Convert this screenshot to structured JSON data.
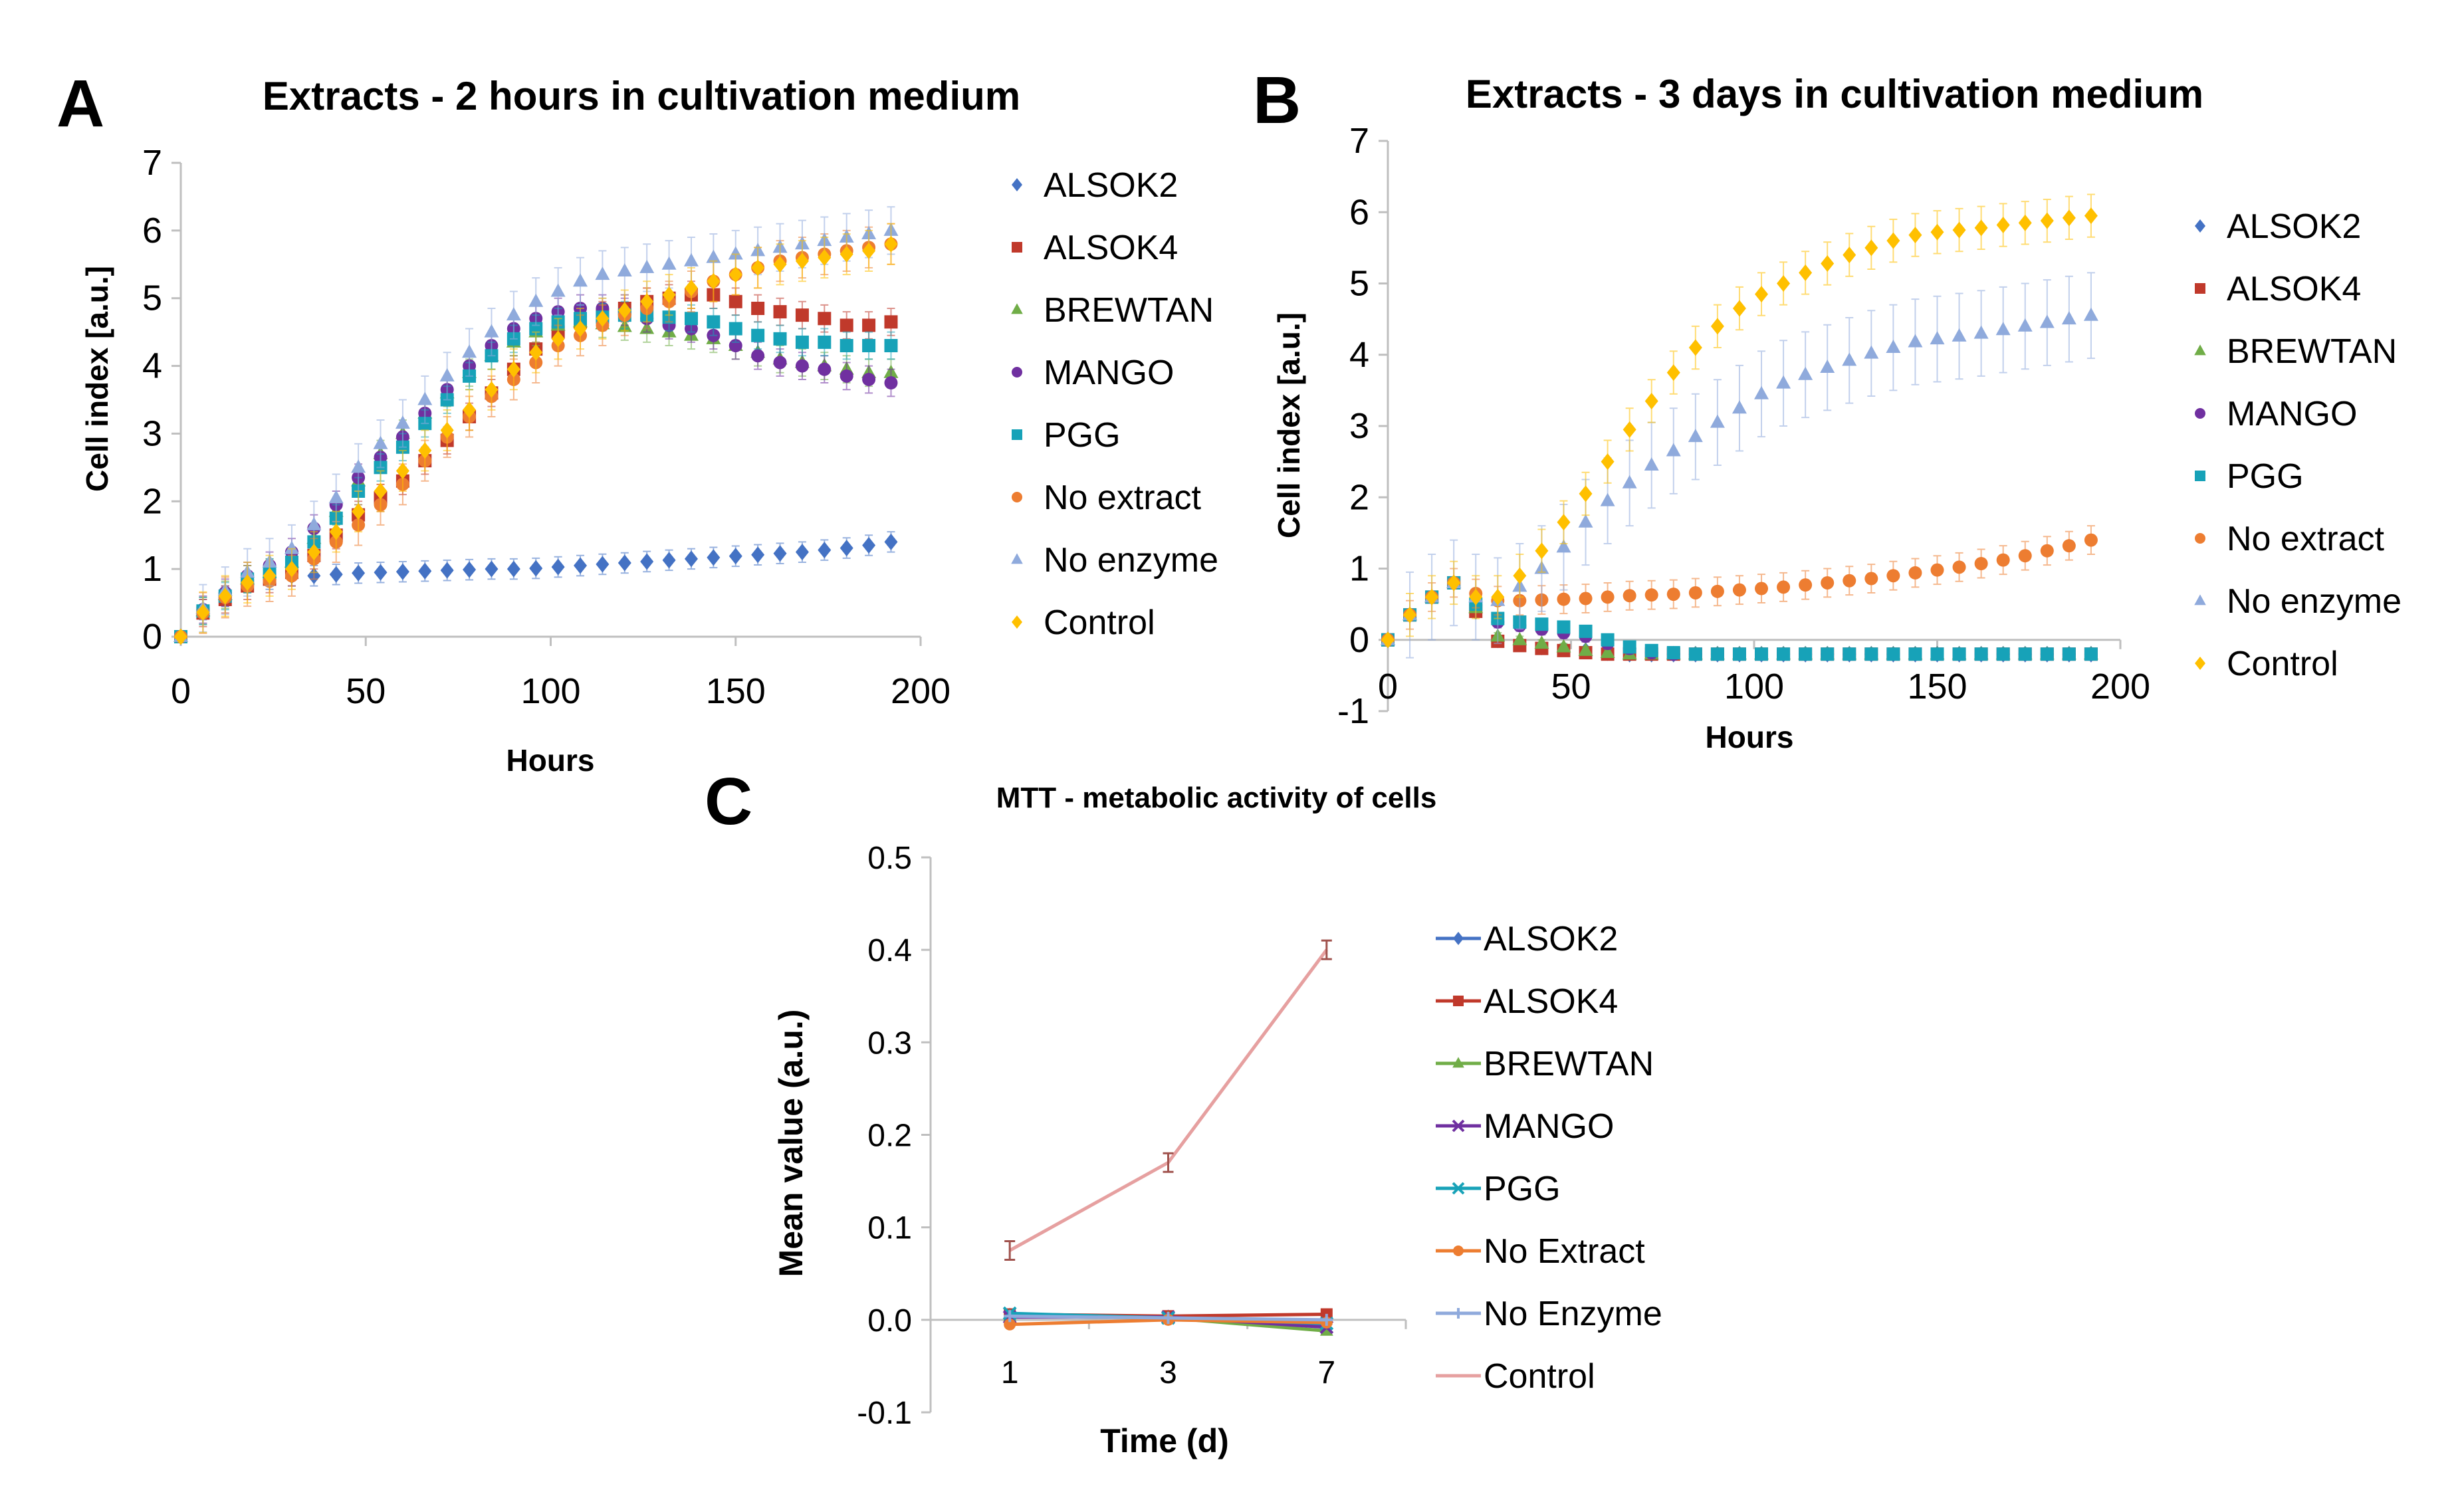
{
  "chart_data": [
    {
      "panel": "A",
      "type": "scatter",
      "title": "Extracts - 2 hours in cultivation medium",
      "xlabel": "Hours",
      "ylabel": "Cell index [a.u.]",
      "xlim": [
        0,
        200
      ],
      "ylim": [
        0,
        7
      ],
      "xticks": [
        "0",
        "50",
        "100",
        "150",
        "200"
      ],
      "yticks": [
        "0",
        "1",
        "2",
        "3",
        "4",
        "5",
        "6",
        "7"
      ],
      "legend_position": "right",
      "x": [
        0,
        6,
        12,
        18,
        24,
        30,
        36,
        42,
        48,
        54,
        60,
        66,
        72,
        78,
        84,
        90,
        96,
        102,
        108,
        114,
        120,
        126,
        132,
        138,
        144,
        150,
        156,
        162,
        168,
        174,
        180,
        186,
        192
      ],
      "series": [
        {
          "name": "ALSOK2",
          "color": "#4472c4",
          "marker": "diamond",
          "err": 0.15,
          "values": [
            0,
            0.4,
            0.6,
            0.8,
            0.85,
            0.9,
            0.9,
            0.92,
            0.94,
            0.95,
            0.96,
            0.97,
            0.98,
            0.99,
            1.0,
            1.0,
            1.01,
            1.03,
            1.05,
            1.07,
            1.09,
            1.11,
            1.13,
            1.15,
            1.17,
            1.19,
            1.21,
            1.23,
            1.25,
            1.28,
            1.31,
            1.35,
            1.4
          ]
        },
        {
          "name": "ALSOK4",
          "color": "#c0392b",
          "marker": "square",
          "err": 0.2,
          "values": [
            0,
            0.35,
            0.55,
            0.75,
            0.85,
            0.95,
            1.2,
            1.5,
            1.8,
            2.05,
            2.3,
            2.6,
            2.9,
            3.25,
            3.6,
            3.95,
            4.25,
            4.5,
            4.65,
            4.75,
            4.85,
            4.95,
            5.0,
            5.05,
            5.05,
            4.95,
            4.85,
            4.8,
            4.75,
            4.7,
            4.6,
            4.6,
            4.65
          ]
        },
        {
          "name": "BREWTAN",
          "color": "#70ad47",
          "marker": "triangle",
          "err": 0.2,
          "values": [
            0,
            0.38,
            0.62,
            0.85,
            0.95,
            1.1,
            1.45,
            1.85,
            2.3,
            2.7,
            3.0,
            3.3,
            3.6,
            3.9,
            4.15,
            4.35,
            4.5,
            4.6,
            4.65,
            4.62,
            4.58,
            4.55,
            4.5,
            4.45,
            4.4,
            4.3,
            4.2,
            4.1,
            4.05,
            4.0,
            3.95,
            3.9,
            3.9
          ]
        },
        {
          "name": "MANGO",
          "color": "#7030a0",
          "marker": "circle",
          "err": 0.2,
          "values": [
            0,
            0.4,
            0.65,
            0.9,
            1.05,
            1.25,
            1.6,
            1.95,
            2.35,
            2.65,
            2.95,
            3.3,
            3.65,
            4.0,
            4.3,
            4.55,
            4.7,
            4.8,
            4.85,
            4.85,
            4.8,
            4.7,
            4.6,
            4.55,
            4.45,
            4.3,
            4.15,
            4.05,
            4.0,
            3.95,
            3.85,
            3.8,
            3.75
          ]
        },
        {
          "name": "PGG",
          "color": "#17a2b8",
          "marker": "square",
          "err": 0.2,
          "values": [
            0,
            0.38,
            0.6,
            0.85,
            0.95,
            1.1,
            1.4,
            1.75,
            2.15,
            2.5,
            2.8,
            3.15,
            3.5,
            3.85,
            4.15,
            4.4,
            4.55,
            4.65,
            4.7,
            4.72,
            4.75,
            4.75,
            4.72,
            4.7,
            4.65,
            4.55,
            4.45,
            4.4,
            4.35,
            4.35,
            4.3,
            4.3,
            4.3
          ]
        },
        {
          "name": "No extract",
          "color": "#ed7d31",
          "marker": "circle",
          "err": 0.3,
          "values": [
            0,
            0.35,
            0.58,
            0.75,
            0.82,
            0.9,
            1.15,
            1.4,
            1.65,
            1.95,
            2.25,
            2.6,
            2.95,
            3.25,
            3.55,
            3.8,
            4.05,
            4.3,
            4.45,
            4.6,
            4.75,
            4.85,
            4.95,
            5.1,
            5.25,
            5.35,
            5.45,
            5.55,
            5.6,
            5.65,
            5.7,
            5.75,
            5.8
          ]
        },
        {
          "name": "No enzyme",
          "color": "#8faadc",
          "marker": "triangle",
          "err": 0.35,
          "values": [
            0,
            0.42,
            0.68,
            0.95,
            1.1,
            1.3,
            1.65,
            2.05,
            2.5,
            2.85,
            3.15,
            3.5,
            3.85,
            4.2,
            4.5,
            4.75,
            4.95,
            5.1,
            5.25,
            5.35,
            5.4,
            5.45,
            5.5,
            5.55,
            5.6,
            5.65,
            5.7,
            5.75,
            5.8,
            5.85,
            5.9,
            5.95,
            6.0
          ]
        },
        {
          "name": "Control",
          "color": "#ffc000",
          "marker": "diamond",
          "err": 0.3,
          "values": [
            0,
            0.36,
            0.6,
            0.8,
            0.9,
            1.0,
            1.25,
            1.55,
            1.85,
            2.15,
            2.45,
            2.75,
            3.05,
            3.35,
            3.65,
            3.95,
            4.2,
            4.4,
            4.55,
            4.7,
            4.82,
            4.95,
            5.05,
            5.15,
            5.25,
            5.35,
            5.45,
            5.5,
            5.55,
            5.6,
            5.65,
            5.7,
            5.8
          ]
        }
      ]
    },
    {
      "panel": "B",
      "type": "scatter",
      "title": "Extracts - 3 days in cultivation medium",
      "xlabel": "Hours",
      "ylabel": "Cell index [a.u.]",
      "xlim": [
        0,
        200
      ],
      "ylim": [
        -1,
        7
      ],
      "xticks": [
        "0",
        "50",
        "100",
        "150",
        "200"
      ],
      "yticks": [
        "-1",
        "0",
        "1",
        "2",
        "3",
        "4",
        "5",
        "6",
        "7"
      ],
      "legend_position": "right",
      "x": [
        0,
        6,
        12,
        18,
        24,
        30,
        36,
        42,
        48,
        54,
        60,
        66,
        72,
        78,
        84,
        90,
        96,
        102,
        108,
        114,
        120,
        126,
        132,
        138,
        144,
        150,
        156,
        162,
        168,
        174,
        180,
        186,
        192
      ],
      "series": [
        {
          "name": "ALSOK2",
          "color": "#4472c4",
          "marker": "diamond",
          "err": 0.05,
          "values": [
            0,
            0.35,
            0.6,
            0.8,
            0.4,
            0.0,
            -0.05,
            -0.1,
            -0.12,
            -0.15,
            -0.18,
            -0.2,
            -0.2,
            -0.2,
            -0.2,
            -0.2,
            -0.2,
            -0.2,
            -0.2,
            -0.2,
            -0.2,
            -0.2,
            -0.2,
            -0.2,
            -0.2,
            -0.2,
            -0.2,
            -0.2,
            -0.2,
            -0.2,
            -0.2,
            -0.2,
            -0.2
          ]
        },
        {
          "name": "ALSOK4",
          "color": "#c0392b",
          "marker": "square",
          "err": 0.05,
          "values": [
            0,
            0.35,
            0.6,
            0.8,
            0.4,
            -0.02,
            -0.08,
            -0.12,
            -0.15,
            -0.18,
            -0.2,
            -0.2,
            -0.2,
            -0.2,
            -0.2,
            -0.2,
            -0.2,
            -0.2,
            -0.2,
            -0.2,
            -0.2,
            -0.2,
            -0.2,
            -0.2,
            -0.2,
            -0.2,
            -0.2,
            -0.2,
            -0.2,
            -0.2,
            -0.2,
            -0.2,
            -0.2
          ]
        },
        {
          "name": "BREWTAN",
          "color": "#70ad47",
          "marker": "triangle",
          "err": 0.05,
          "values": [
            0,
            0.35,
            0.6,
            0.8,
            0.45,
            0.05,
            0.0,
            -0.05,
            -0.1,
            -0.15,
            -0.18,
            -0.2,
            -0.2,
            -0.2,
            -0.2,
            -0.2,
            -0.2,
            -0.2,
            -0.2,
            -0.2,
            -0.2,
            -0.2,
            -0.2,
            -0.2,
            -0.2,
            -0.2,
            -0.2,
            -0.2,
            -0.2,
            -0.2,
            -0.2,
            -0.2,
            -0.2
          ]
        },
        {
          "name": "MANGO",
          "color": "#7030a0",
          "marker": "circle",
          "err": 0.08,
          "values": [
            0,
            0.35,
            0.6,
            0.8,
            0.5,
            0.25,
            0.2,
            0.15,
            0.1,
            0.05,
            -0.05,
            -0.12,
            -0.18,
            -0.2,
            -0.2,
            -0.2,
            -0.2,
            -0.2,
            -0.2,
            -0.2,
            -0.2,
            -0.2,
            -0.2,
            -0.2,
            -0.2,
            -0.2,
            -0.2,
            -0.2,
            -0.2,
            -0.2,
            -0.2,
            -0.2,
            -0.2
          ]
        },
        {
          "name": "PGG",
          "color": "#17a2b8",
          "marker": "square",
          "err": 0.08,
          "values": [
            0,
            0.35,
            0.6,
            0.8,
            0.5,
            0.3,
            0.25,
            0.22,
            0.18,
            0.12,
            0.0,
            -0.1,
            -0.15,
            -0.18,
            -0.2,
            -0.2,
            -0.2,
            -0.2,
            -0.2,
            -0.2,
            -0.2,
            -0.2,
            -0.2,
            -0.2,
            -0.2,
            -0.2,
            -0.2,
            -0.2,
            -0.2,
            -0.2,
            -0.2,
            -0.2,
            -0.2
          ]
        },
        {
          "name": "No extract",
          "color": "#ed7d31",
          "marker": "circle",
          "err": 0.2,
          "values": [
            0,
            0.35,
            0.6,
            0.8,
            0.65,
            0.55,
            0.55,
            0.56,
            0.57,
            0.58,
            0.6,
            0.62,
            0.63,
            0.64,
            0.66,
            0.68,
            0.7,
            0.72,
            0.74,
            0.77,
            0.8,
            0.83,
            0.86,
            0.9,
            0.94,
            0.98,
            1.02,
            1.07,
            1.12,
            1.18,
            1.25,
            1.32,
            1.4
          ]
        },
        {
          "name": "No enzyme",
          "color": "#8faadc",
          "marker": "triangle",
          "err": 0.6,
          "values": [
            0,
            0.35,
            0.6,
            0.8,
            0.6,
            0.55,
            0.75,
            1.0,
            1.3,
            1.65,
            1.95,
            2.2,
            2.45,
            2.65,
            2.85,
            3.05,
            3.25,
            3.45,
            3.6,
            3.72,
            3.82,
            3.92,
            4.02,
            4.1,
            4.18,
            4.22,
            4.26,
            4.3,
            4.35,
            4.4,
            4.45,
            4.5,
            4.55
          ]
        },
        {
          "name": "Control",
          "color": "#ffc000",
          "marker": "diamond",
          "err": 0.3,
          "values": [
            0,
            0.35,
            0.6,
            0.8,
            0.6,
            0.6,
            0.9,
            1.25,
            1.65,
            2.05,
            2.5,
            2.95,
            3.35,
            3.75,
            4.1,
            4.4,
            4.65,
            4.85,
            5.0,
            5.15,
            5.28,
            5.4,
            5.5,
            5.6,
            5.68,
            5.72,
            5.75,
            5.78,
            5.82,
            5.85,
            5.88,
            5.92,
            5.95
          ]
        }
      ]
    },
    {
      "panel": "C",
      "type": "line",
      "title": "MTT - metabolic activity of cells",
      "xlabel": "Time (d)",
      "ylabel": "Mean value (a.u.)",
      "categories": [
        "1",
        "3",
        "7"
      ],
      "ylim": [
        -0.1,
        0.5
      ],
      "yticks": [
        "-0.1",
        "0.0",
        "0.1",
        "0.2",
        "0.3",
        "0.4",
        "0.5"
      ],
      "legend_position": "right",
      "series": [
        {
          "name": "ALSOK2",
          "color": "#4472c4",
          "marker": "diamond",
          "values": [
            0.005,
            0.003,
            -0.005
          ]
        },
        {
          "name": "ALSOK4",
          "color": "#c0392b",
          "marker": "square",
          "values": [
            0.006,
            0.004,
            0.006
          ]
        },
        {
          "name": "BREWTAN",
          "color": "#70ad47",
          "marker": "triangle",
          "values": [
            0.004,
            0.002,
            -0.012
          ]
        },
        {
          "name": "MANGO",
          "color": "#7030a0",
          "marker": "cross",
          "values": [
            0.003,
            0.003,
            -0.008
          ]
        },
        {
          "name": "PGG",
          "color": "#17a2b8",
          "marker": "cross",
          "values": [
            0.007,
            0.002,
            -0.004
          ]
        },
        {
          "name": "No Extract",
          "color": "#ed7d31",
          "marker": "circle",
          "values": [
            -0.005,
            0.0,
            -0.003
          ]
        },
        {
          "name": "No Enzyme",
          "color": "#8faadc",
          "marker": "plus",
          "values": [
            0.004,
            0.002,
            0.0
          ]
        },
        {
          "name": "Control",
          "color": "#e6a0a0",
          "marker": "none",
          "values": [
            0.075,
            0.17,
            0.4
          ]
        }
      ]
    }
  ]
}
